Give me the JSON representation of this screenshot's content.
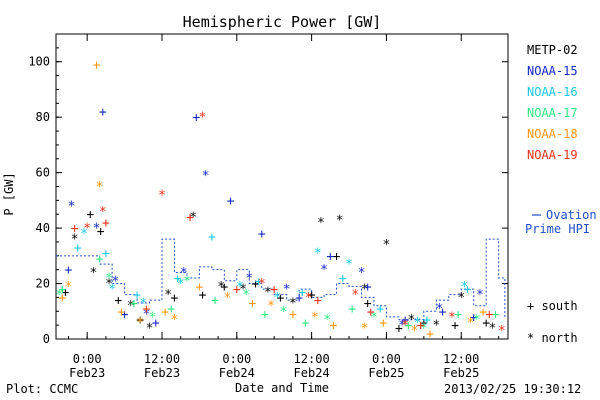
{
  "chart_data": {
    "type": "scatter",
    "title": "Hemispheric Power [GW]",
    "xlabel": "Date and Time",
    "ylabel": "P [GW]",
    "ylim": [
      0,
      110
    ],
    "xlim": [
      "2013-02-22T19:00",
      "2013-02-25T19:30"
    ],
    "yticks": [
      0,
      20,
      40,
      60,
      80,
      100
    ],
    "xticks": [
      {
        "time": "0:00",
        "date": "Feb23"
      },
      {
        "time": "12:00",
        "date": "Feb23"
      },
      {
        "time": "0:00",
        "date": "Feb24"
      },
      {
        "time": "12:00",
        "date": "Feb24"
      },
      {
        "time": "0:00",
        "date": "Feb25"
      },
      {
        "time": "12:00",
        "date": "Feb25"
      }
    ],
    "grid": false,
    "legend_position": "right",
    "markers": {
      "south": "+",
      "north": "*"
    },
    "marker_legend": [
      {
        "symbol": "+",
        "label": "south"
      },
      {
        "symbol": "*",
        "label": "north"
      }
    ],
    "model": {
      "name": "Ovation Prime HPI",
      "label_line1": "Ovation",
      "label_line2": "Prime HPI",
      "color": "#1e50c8",
      "x": [
        "2013-02-22T19:00",
        "2013-02-23T02:00",
        "2013-02-23T04:00",
        "2013-02-23T06:00",
        "2013-02-23T08:00",
        "2013-02-23T10:00",
        "2013-02-23T12:00",
        "2013-02-23T14:00",
        "2013-02-23T16:00",
        "2013-02-23T18:00",
        "2013-02-23T20:00",
        "2013-02-23T22:00",
        "2013-02-24T00:00",
        "2013-02-24T02:00",
        "2013-02-24T04:00",
        "2013-02-24T06:00",
        "2013-02-24T08:00",
        "2013-02-24T10:00",
        "2013-02-24T12:00",
        "2013-02-24T14:00",
        "2013-02-24T16:00",
        "2013-02-24T18:00",
        "2013-02-24T20:00",
        "2013-02-24T22:00",
        "2013-02-25T00:00",
        "2013-02-25T02:00",
        "2013-02-25T04:00",
        "2013-02-25T06:00",
        "2013-02-25T08:00",
        "2013-02-25T10:00",
        "2013-02-25T12:00",
        "2013-02-25T14:00",
        "2013-02-25T16:00",
        "2013-02-25T18:00",
        "2013-02-25T19:00"
      ],
      "y": [
        30,
        27,
        20,
        16,
        13,
        14,
        36,
        24,
        22,
        26,
        25,
        21,
        25,
        20,
        18,
        16,
        14,
        18,
        15,
        16,
        20,
        19,
        15,
        12,
        8,
        7,
        7,
        10,
        14,
        16,
        18,
        12,
        36,
        22,
        8
      ]
    },
    "series": [
      {
        "name": "METP-02",
        "color": "#000000",
        "south": {
          "x": [
            "2013-02-22T20:30",
            "2013-02-23T00:30",
            "2013-02-23T02:10",
            "2013-02-23T05:00",
            "2013-02-23T08:30",
            "2013-02-23T14:00",
            "2013-02-23T18:30",
            "2013-02-23T22:00",
            "2013-02-24T03:00",
            "2013-02-24T07:00",
            "2013-02-24T12:00",
            "2013-02-24T16:00",
            "2013-02-24T21:00",
            "2013-02-25T02:00",
            "2013-02-25T06:00",
            "2013-02-25T11:00",
            "2013-02-25T16:00"
          ],
          "y": [
            17,
            45,
            39,
            14,
            7,
            15,
            16,
            19,
            20,
            15,
            16,
            30,
            13,
            4,
            6,
            5,
            6
          ]
        },
        "north": {
          "x": [
            "2013-02-22T22:00",
            "2013-02-23T01:00",
            "2013-02-23T03:30",
            "2013-02-23T07:00",
            "2013-02-23T10:00",
            "2013-02-23T13:00",
            "2013-02-23T17:00",
            "2013-02-23T21:30",
            "2013-02-24T01:00",
            "2013-02-24T05:00",
            "2013-02-24T09:00",
            "2013-02-24T13:30",
            "2013-02-24T16:30",
            "2013-02-24T20:30",
            "2013-02-25T00:00",
            "2013-02-25T04:00",
            "2013-02-25T08:00",
            "2013-02-25T12:00",
            "2013-02-25T17:00"
          ],
          "y": [
            36,
            24,
            20,
            12,
            4,
            16,
            44,
            19,
            18,
            17,
            13,
            42,
            43,
            18,
            34,
            7,
            5,
            15,
            4
          ]
        }
      },
      {
        "name": "NOAA-15",
        "color": "#1428c8",
        "south": {
          "x": [
            "2013-02-22T21:00",
            "2013-02-23T02:30",
            "2013-02-23T06:00",
            "2013-02-23T11:00",
            "2013-02-23T17:30",
            "2013-02-23T23:00",
            "2013-02-24T04:00",
            "2013-02-24T10:00",
            "2013-02-24T15:00",
            "2013-02-24T21:00",
            "2013-02-25T03:00",
            "2013-02-25T09:00",
            "2013-02-25T14:00"
          ],
          "y": [
            25,
            82,
            9,
            6,
            80,
            50,
            38,
            15,
            30,
            19,
            7,
            10,
            8
          ]
        },
        "north": {
          "x": [
            "2013-02-22T21:30",
            "2013-02-23T01:30",
            "2013-02-23T04:30",
            "2013-02-23T09:30",
            "2013-02-23T15:30",
            "2013-02-23T19:00",
            "2013-02-24T02:00",
            "2013-02-24T08:00",
            "2013-02-24T14:00",
            "2013-02-24T20:00",
            "2013-02-25T02:30",
            "2013-02-25T08:30",
            "2013-02-25T15:00"
          ],
          "y": [
            48,
            40,
            21,
            9,
            24,
            59,
            22,
            18,
            25,
            24,
            5,
            11,
            16
          ]
        }
      },
      {
        "name": "NOAA-16",
        "color": "#19c8e6",
        "south": {
          "x": [
            "2013-02-22T22:30",
            "2013-02-23T03:00",
            "2013-02-23T08:00",
            "2013-02-23T14:30",
            "2013-02-23T20:00",
            "2013-02-24T03:30",
            "2013-02-24T10:30",
            "2013-02-24T17:00",
            "2013-02-24T23:00",
            "2013-02-25T06:30",
            "2013-02-25T13:00"
          ],
          "y": [
            33,
            31,
            16,
            22,
            37,
            21,
            17,
            22,
            11,
            7,
            18
          ]
        },
        "north": {
          "x": [
            "2013-02-22T23:30",
            "2013-02-23T04:00",
            "2013-02-23T09:00",
            "2013-02-23T15:00",
            "2013-02-24T00:30",
            "2013-02-24T06:30",
            "2013-02-24T13:00",
            "2013-02-24T18:00",
            "2013-02-25T05:00",
            "2013-02-25T12:30"
          ],
          "y": [
            38,
            18,
            13,
            20,
            19,
            15,
            31,
            27,
            6,
            19
          ]
        }
      },
      {
        "name": "NOAA-17",
        "color": "#32e682",
        "south": {
          "x": [
            "2013-02-22T20:00",
            "2013-02-23T02:00",
            "2013-02-23T07:30",
            "2013-02-23T13:30",
            "2013-02-23T20:30",
            "2013-02-24T04:30",
            "2013-02-24T11:00",
            "2013-02-24T18:30",
            "2013-02-25T03:30",
            "2013-02-25T11:30",
            "2013-02-25T17:30"
          ],
          "y": [
            18,
            29,
            13,
            11,
            14,
            9,
            6,
            11,
            5,
            9,
            9
          ]
        },
        "north": {
          "x": [
            "2013-02-22T19:30",
            "2013-02-23T03:30",
            "2013-02-23T10:30",
            "2013-02-23T16:00",
            "2013-02-24T01:30",
            "2013-02-24T07:30",
            "2013-02-24T14:30",
            "2013-02-24T22:00",
            "2013-02-25T06:00",
            "2013-02-25T14:30"
          ],
          "y": [
            16,
            22,
            8,
            21,
            16,
            10,
            7,
            8,
            4,
            7
          ]
        }
      },
      {
        "name": "NOAA-18",
        "color": "#ff9614",
        "south": {
          "x": [
            "2013-02-22T20:00",
            "2013-02-23T01:30",
            "2013-02-23T05:30",
            "2013-02-23T12:30",
            "2013-02-23T18:00",
            "2013-02-24T02:30",
            "2013-02-24T09:00",
            "2013-02-24T15:30",
            "2013-02-24T23:30",
            "2013-02-25T07:00",
            "2013-02-25T15:30"
          ],
          "y": [
            15,
            99,
            10,
            10,
            19,
            13,
            9,
            5,
            6,
            2,
            10
          ]
        },
        "north": {
          "x": [
            "2013-02-22T21:00",
            "2013-02-23T02:00",
            "2013-02-23T08:30",
            "2013-02-23T14:00",
            "2013-02-23T22:30",
            "2013-02-24T05:30",
            "2013-02-24T12:30",
            "2013-02-24T20:30",
            "2013-02-25T04:30",
            "2013-02-25T13:30"
          ],
          "y": [
            19,
            55,
            6,
            7,
            15,
            12,
            8,
            4,
            3,
            6
          ]
        }
      },
      {
        "name": "NOAA-19",
        "color": "#e63214",
        "south": {
          "x": [
            "2013-02-22T22:00",
            "2013-02-23T03:00",
            "2013-02-23T09:30",
            "2013-02-23T16:30",
            "2013-02-24T00:00",
            "2013-02-24T06:00",
            "2013-02-24T13:00",
            "2013-02-24T21:30",
            "2013-02-25T05:30",
            "2013-02-25T16:30"
          ],
          "y": [
            40,
            42,
            11,
            44,
            18,
            18,
            14,
            10,
            5,
            9
          ]
        },
        "north": {
          "x": [
            "2013-02-23T00:00",
            "2013-02-23T02:30",
            "2013-02-23T12:00",
            "2013-02-23T18:30",
            "2013-02-24T04:00",
            "2013-02-24T11:30",
            "2013-02-24T19:00",
            "2013-02-25T03:00",
            "2013-02-25T10:30",
            "2013-02-25T18:30"
          ],
          "y": [
            40,
            46,
            52,
            80,
            20,
            15,
            16,
            5,
            8,
            3
          ]
        }
      }
    ]
  },
  "footer": {
    "plot_credit": "Plot: CCMC",
    "timestamp": "2013/02/25 19:30:12"
  }
}
